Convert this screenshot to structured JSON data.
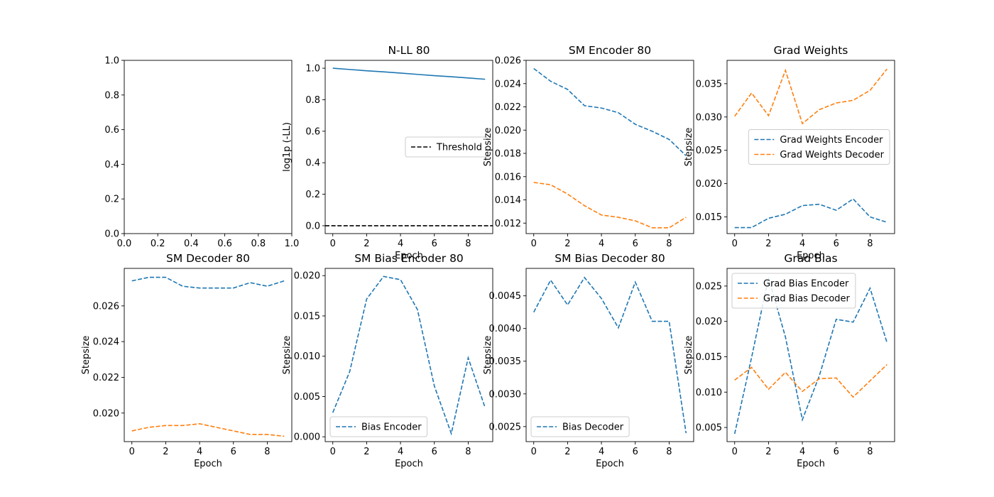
{
  "chart_data": [
    {
      "id": "empty",
      "type": "line",
      "title": "",
      "xlabel": "",
      "ylabel": "",
      "xlim": [
        0,
        1
      ],
      "ylim": [
        0,
        1
      ],
      "xticks": [
        0,
        0.2,
        0.4,
        0.6,
        0.8,
        1
      ],
      "xtick_labels": [
        "0.0",
        "0.2",
        "0.4",
        "0.6",
        "0.8",
        "1.0"
      ],
      "yticks": [
        0,
        0.2,
        0.4,
        0.6,
        0.8,
        1
      ],
      "ytick_labels": [
        "0.0",
        "0.2",
        "0.4",
        "0.6",
        "0.8",
        "1.0"
      ],
      "series": []
    },
    {
      "id": "nll",
      "type": "line",
      "title": "N-LL 80",
      "xlabel": "Epoch",
      "ylabel": "log1p (-LL)",
      "xlim": [
        -0.45,
        9.45
      ],
      "ylim": [
        -0.05,
        1.05
      ],
      "xticks": [
        0,
        2,
        4,
        6,
        8
      ],
      "xtick_labels": [
        "0",
        "2",
        "4",
        "6",
        "8"
      ],
      "yticks": [
        0,
        0.2,
        0.4,
        0.6,
        0.8,
        1.0
      ],
      "ytick_labels": [
        "0.0",
        "0.2",
        "0.4",
        "0.6",
        "0.8",
        "1.0"
      ],
      "legend_position": "center-right",
      "series": [
        {
          "x": [
            0,
            1,
            2,
            3,
            4,
            5,
            6,
            7,
            8,
            9
          ],
          "y": [
            1.0,
            0.992,
            0.984,
            0.977,
            0.969,
            0.961,
            0.953,
            0.946,
            0.938,
            0.93
          ],
          "color": "#1f77b4",
          "dash": "solid"
        },
        {
          "name": "Threshold",
          "x": [
            -0.45,
            9.45
          ],
          "y": [
            0,
            0
          ],
          "color": "#000000",
          "dash": "dashed"
        }
      ]
    },
    {
      "id": "sm_encoder",
      "type": "line",
      "title": "SM Encoder 80",
      "xlabel": "",
      "ylabel": "Stepsize",
      "xlim": [
        -0.45,
        9.45
      ],
      "ylim": [
        0.0111,
        0.026
      ],
      "xticks": [
        0,
        2,
        4,
        6,
        8
      ],
      "xtick_labels": [
        "0",
        "2",
        "4",
        "6",
        "8"
      ],
      "yticks": [
        0.012,
        0.014,
        0.016,
        0.018,
        0.02,
        0.022,
        0.024,
        0.026
      ],
      "ytick_labels": [
        "0.012",
        "0.014",
        "0.016",
        "0.018",
        "0.020",
        "0.022",
        "0.024",
        "0.026"
      ],
      "series": [
        {
          "x": [
            0,
            1,
            2,
            3,
            4,
            5,
            6,
            7,
            8,
            9
          ],
          "y": [
            0.0253,
            0.0242,
            0.0235,
            0.0221,
            0.0219,
            0.0215,
            0.0205,
            0.0199,
            0.0192,
            0.0178
          ],
          "color": "#1f77b4",
          "dash": "dashed"
        },
        {
          "x": [
            0,
            1,
            2,
            3,
            4,
            5,
            6,
            7,
            8,
            9
          ],
          "y": [
            0.0155,
            0.0153,
            0.0145,
            0.0135,
            0.0127,
            0.0125,
            0.0122,
            0.0116,
            0.0116,
            0.0125
          ],
          "color": "#ff7f0e",
          "dash": "dashed"
        }
      ]
    },
    {
      "id": "grad_weights",
      "type": "line",
      "title": "Grad Weights",
      "xlabel": "Epoch",
      "ylabel": "Stepsize",
      "xlim": [
        -0.45,
        9.45
      ],
      "ylim": [
        0.0125,
        0.0385
      ],
      "xticks": [
        0,
        2,
        4,
        6,
        8
      ],
      "xtick_labels": [
        "0",
        "2",
        "4",
        "6",
        "8"
      ],
      "yticks": [
        0.015,
        0.02,
        0.025,
        0.03,
        0.035
      ],
      "ytick_labels": [
        "0.015",
        "0.020",
        "0.025",
        "0.030",
        "0.035"
      ],
      "legend_position": "center-right",
      "series": [
        {
          "name": "Grad Weights Encoder",
          "x": [
            0,
            1,
            2,
            3,
            4,
            5,
            6,
            7,
            8,
            9
          ],
          "y": [
            0.0134,
            0.0134,
            0.0148,
            0.0154,
            0.0167,
            0.0169,
            0.016,
            0.0177,
            0.015,
            0.0142
          ],
          "color": "#1f77b4",
          "dash": "dashed"
        },
        {
          "name": "Grad Weights Decoder",
          "x": [
            0,
            1,
            2,
            3,
            4,
            5,
            6,
            7,
            8,
            9
          ],
          "y": [
            0.0301,
            0.0336,
            0.0302,
            0.037,
            0.029,
            0.0311,
            0.0321,
            0.0325,
            0.034,
            0.0372
          ],
          "color": "#ff7f0e",
          "dash": "dashed"
        }
      ]
    },
    {
      "id": "sm_decoder",
      "type": "line",
      "title": "SM Decoder 80",
      "xlabel": "Epoch",
      "ylabel": "Stepsize",
      "xlim": [
        -0.45,
        9.45
      ],
      "ylim": [
        0.0184,
        0.0281
      ],
      "xticks": [
        0,
        2,
        4,
        6,
        8
      ],
      "xtick_labels": [
        "0",
        "2",
        "4",
        "6",
        "8"
      ],
      "yticks": [
        0.02,
        0.022,
        0.024,
        0.026
      ],
      "ytick_labels": [
        "0.020",
        "0.022",
        "0.024",
        "0.026"
      ],
      "series": [
        {
          "x": [
            0,
            1,
            2,
            3,
            4,
            5,
            6,
            7,
            8,
            9
          ],
          "y": [
            0.0274,
            0.0276,
            0.0276,
            0.0271,
            0.027,
            0.027,
            0.027,
            0.0273,
            0.0271,
            0.0274
          ],
          "color": "#1f77b4",
          "dash": "dashed"
        },
        {
          "x": [
            0,
            1,
            2,
            3,
            4,
            5,
            6,
            7,
            8,
            9
          ],
          "y": [
            0.019,
            0.0192,
            0.0193,
            0.0193,
            0.0194,
            0.0192,
            0.019,
            0.0188,
            0.0188,
            0.0187
          ],
          "color": "#ff7f0e",
          "dash": "dashed"
        }
      ]
    },
    {
      "id": "sm_bias_encoder",
      "type": "line",
      "title": "SM Bias Encoder 80",
      "xlabel": "Epoch",
      "ylabel": "Stepsize",
      "xlim": [
        -0.45,
        9.45
      ],
      "ylim": [
        -0.0006,
        0.0209
      ],
      "xticks": [
        0,
        2,
        4,
        6,
        8
      ],
      "xtick_labels": [
        "0",
        "2",
        "4",
        "6",
        "8"
      ],
      "yticks": [
        0,
        0.005,
        0.01,
        0.015,
        0.02
      ],
      "ytick_labels": [
        "0.000",
        "0.005",
        "0.010",
        "0.015",
        "0.020"
      ],
      "legend_position": "lower-left",
      "series": [
        {
          "name": "Bias Encoder",
          "x": [
            0,
            1,
            2,
            3,
            4,
            5,
            6,
            7,
            8,
            9
          ],
          "y": [
            0.003,
            0.0081,
            0.0171,
            0.0199,
            0.0195,
            0.0158,
            0.0063,
            0.0004,
            0.0098,
            0.0036
          ],
          "color": "#1f77b4",
          "dash": "dashed"
        }
      ]
    },
    {
      "id": "sm_bias_decoder",
      "type": "line",
      "title": "SM Bias Decoder 80",
      "xlabel": "Epoch",
      "ylabel": "Stepsize",
      "xlim": [
        -0.45,
        9.45
      ],
      "ylim": [
        0.00227,
        0.00492
      ],
      "xticks": [
        0,
        2,
        4,
        6,
        8
      ],
      "xtick_labels": [
        "0",
        "2",
        "4",
        "6",
        "8"
      ],
      "yticks": [
        0.0025,
        0.003,
        0.0035,
        0.004,
        0.0045
      ],
      "ytick_labels": [
        "0.0025",
        "0.0030",
        "0.0035",
        "0.0040",
        "0.0045"
      ],
      "legend_position": "lower-left",
      "series": [
        {
          "name": "Bias Decoder",
          "x": [
            0,
            1,
            2,
            3,
            4,
            5,
            6,
            7,
            8,
            9
          ],
          "y": [
            0.00425,
            0.00474,
            0.00436,
            0.00478,
            0.00446,
            0.00401,
            0.00471,
            0.00411,
            0.00411,
            0.0024
          ],
          "color": "#1f77b4",
          "dash": "dashed"
        }
      ]
    },
    {
      "id": "grad_bias",
      "type": "line",
      "title": "Grad Bias",
      "xlabel": "Epoch",
      "ylabel": "Stepsize",
      "xlim": [
        -0.45,
        9.45
      ],
      "ylim": [
        0.003,
        0.0275
      ],
      "xticks": [
        0,
        2,
        4,
        6,
        8
      ],
      "xtick_labels": [
        "0",
        "2",
        "4",
        "6",
        "8"
      ],
      "yticks": [
        0.005,
        0.01,
        0.015,
        0.02,
        0.025
      ],
      "ytick_labels": [
        "0.005",
        "0.010",
        "0.015",
        "0.020",
        "0.025"
      ],
      "legend_position": "upper-left",
      "series": [
        {
          "name": "Grad Bias Encoder",
          "x": [
            0,
            1,
            2,
            3,
            4,
            5,
            6,
            7,
            8,
            9
          ],
          "y": [
            0.0041,
            0.0149,
            0.0262,
            0.0178,
            0.0061,
            0.0123,
            0.0203,
            0.0199,
            0.0247,
            0.017
          ],
          "color": "#1f77b4",
          "dash": "dashed"
        },
        {
          "name": "Grad Bias Decoder",
          "x": [
            0,
            1,
            2,
            3,
            4,
            5,
            6,
            7,
            8,
            9
          ],
          "y": [
            0.0117,
            0.0135,
            0.0104,
            0.0128,
            0.0101,
            0.0119,
            0.012,
            0.0093,
            0.0116,
            0.0139
          ],
          "color": "#ff7f0e",
          "dash": "dashed"
        }
      ]
    }
  ]
}
